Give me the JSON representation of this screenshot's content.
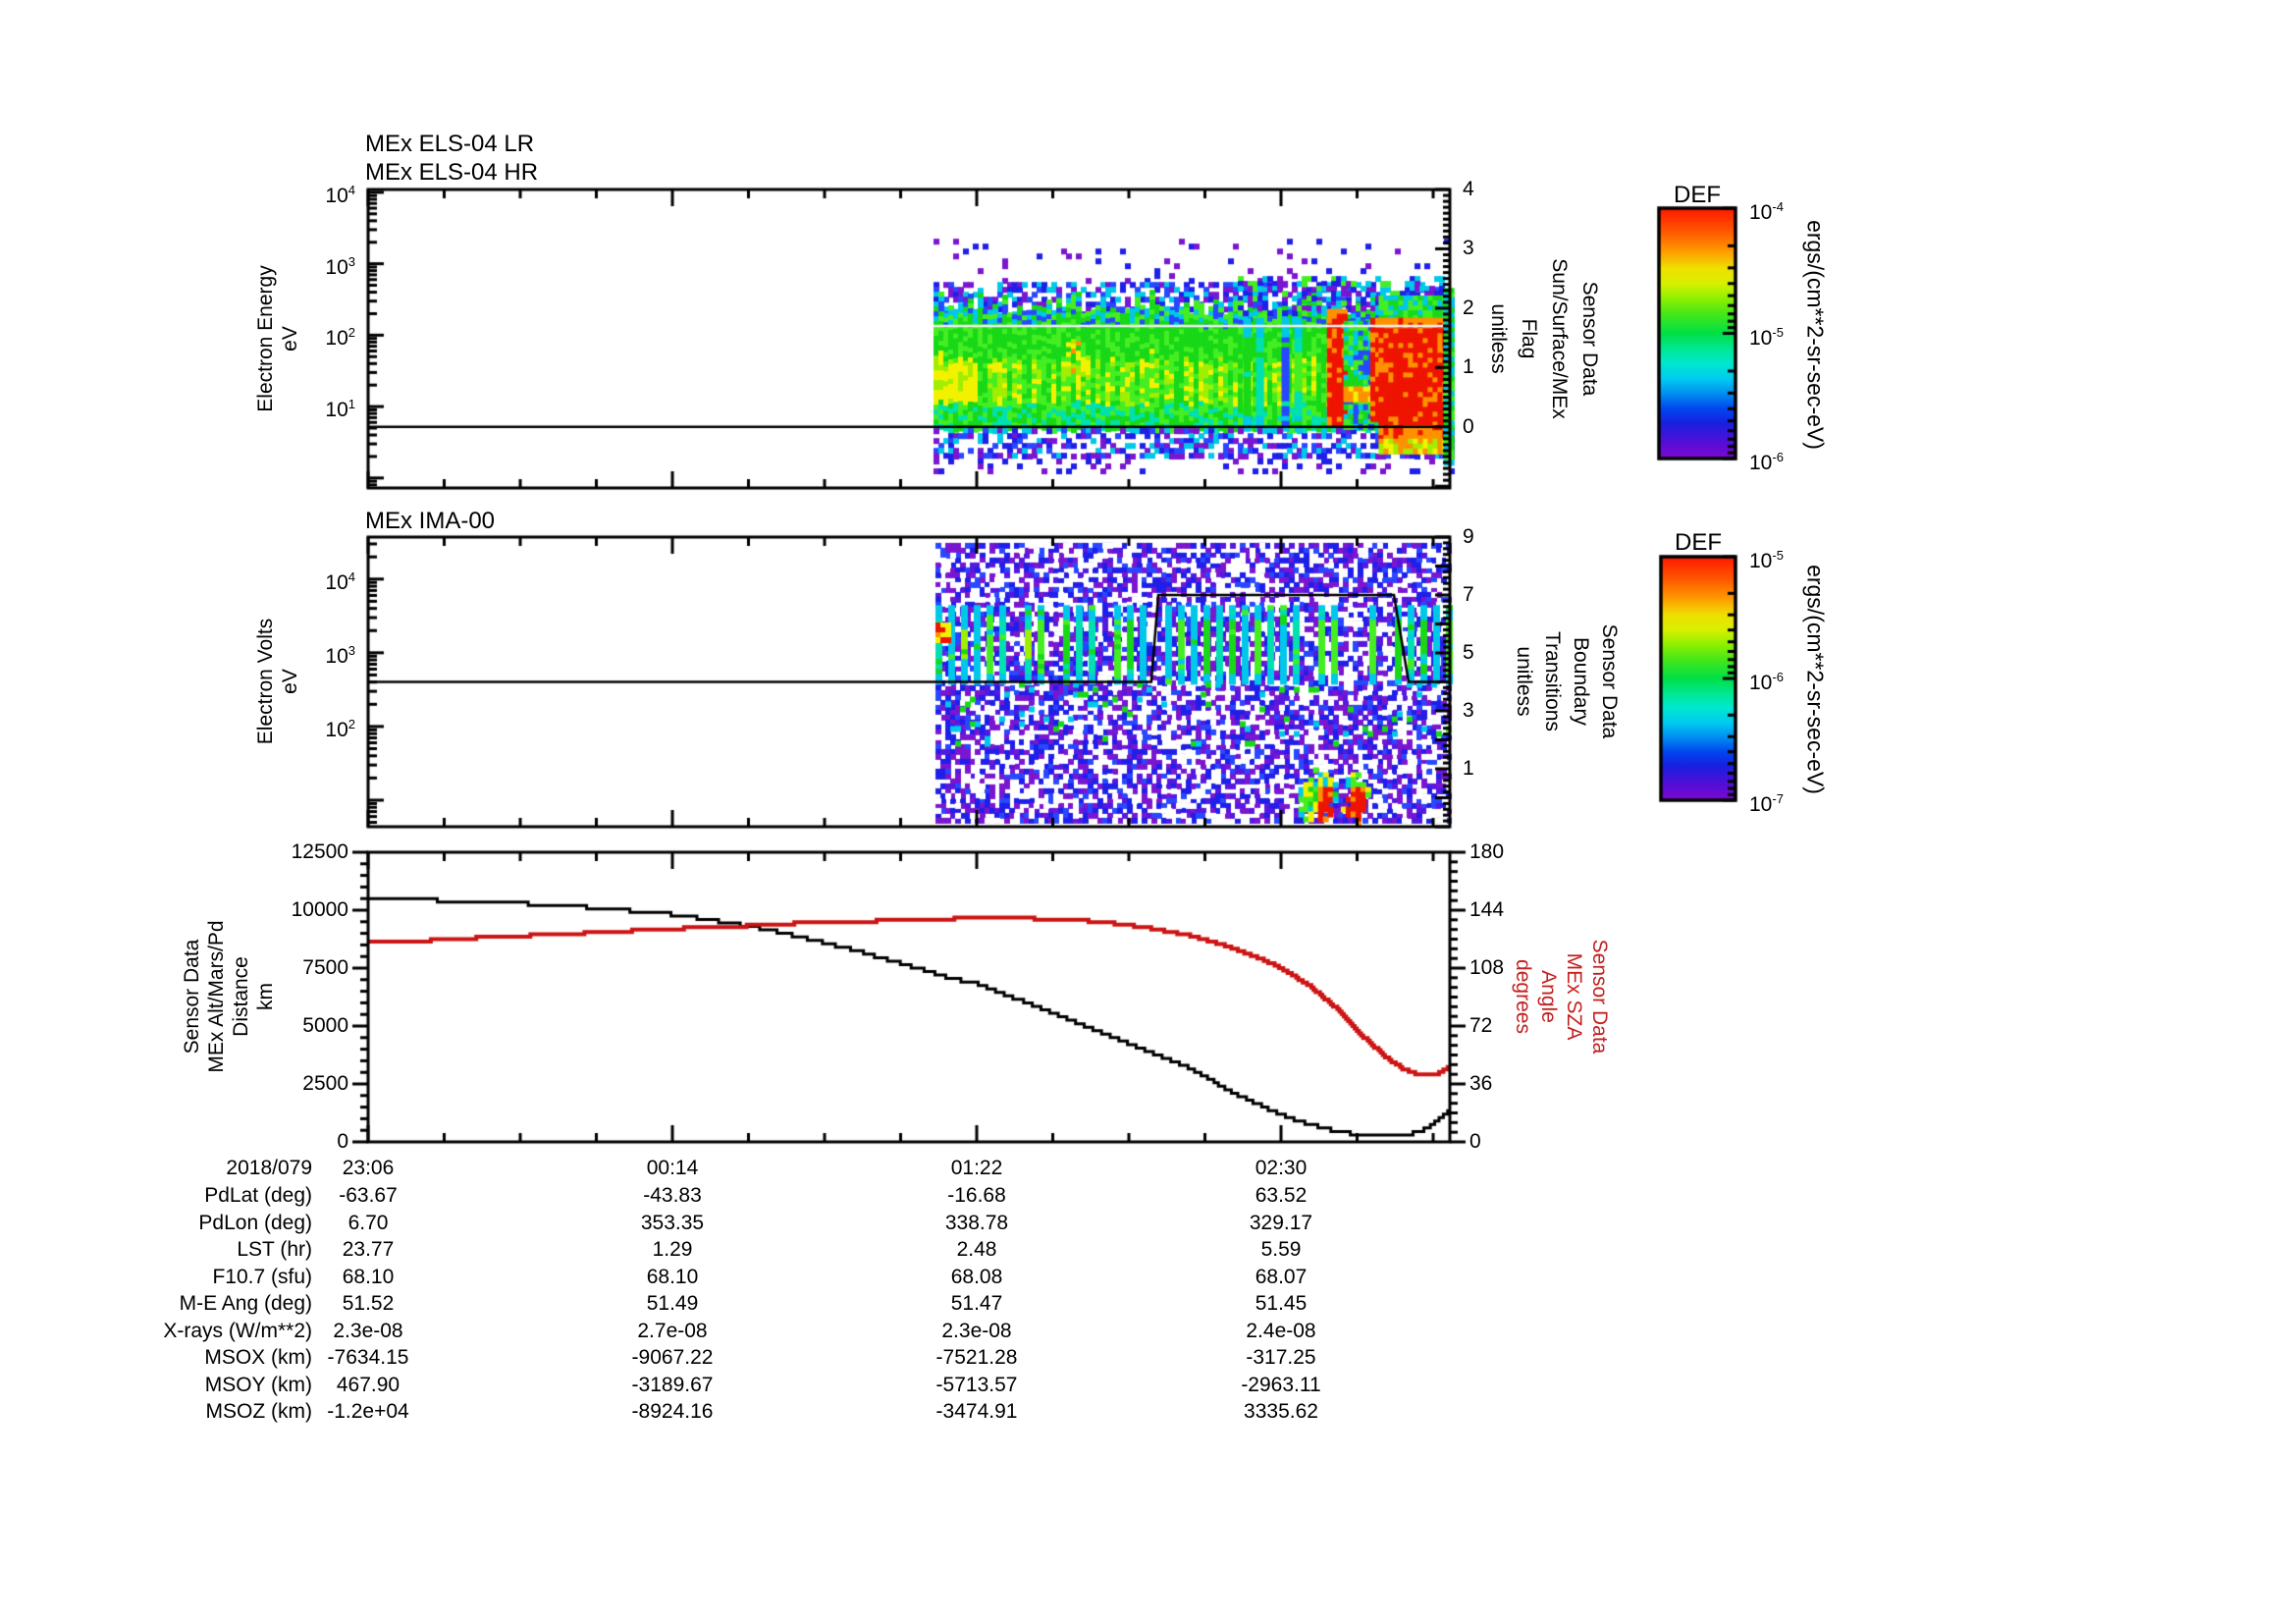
{
  "page": {
    "background": "#ffffff"
  },
  "palette": {
    "purple": "#7a16d0",
    "violet": "#5518e0",
    "blue": "#1f1fe8",
    "blue2": "#2848ff",
    "cyan": "#00c8e8",
    "teal": "#00e0b0",
    "green": "#18d818",
    "green2": "#44ee22",
    "ygreen": "#a0ee00",
    "yellow": "#f2f200",
    "orange": "#ff9100",
    "red": "#ee1400",
    "white": "#ffffff",
    "axis": "#000000",
    "red_series": "#cc1414",
    "overlay": "#f0f0f0"
  },
  "xaxis": {
    "date": "2018/079",
    "labels": [
      "23:06",
      "00:14",
      "01:22",
      "02:30"
    ],
    "major_fracs": [
      0,
      0.281308,
      0.562616,
      0.843924
    ],
    "minor_frac": 0.070327,
    "minor_count": 15
  },
  "chart_data": [
    {
      "type": "heatmap",
      "id": "els",
      "titles": [
        "MEx ELS-04 LR",
        "MEx ELS-04 HR"
      ],
      "ylabel_lines": [
        "Electron Energy",
        "eV"
      ],
      "y2label_lines": [
        "Sensor Data",
        "Sun/Surface/MEx",
        "Flag",
        "unitless"
      ],
      "yaxis": {
        "scale": "log",
        "exp_top": 4.04,
        "exp_bottom": -0.14,
        "labeled": [
          1,
          2,
          3,
          4
        ]
      },
      "y2axis": {
        "min": -1.03,
        "max": 4,
        "labels": [
          0,
          1,
          2,
          3,
          4
        ],
        "minor": 0.1
      },
      "data_start_frac": 0.5227,
      "flag_segments": [
        [
          0,
          0
        ],
        [
          1,
          0
        ]
      ],
      "overlay_line_value": 1.7,
      "colorbar": {
        "title": "DEF",
        "unit": "ergs/(cm**2-sr-sec-eV)",
        "tick_labels": [
          {
            "exp": "-4",
            "frac": 0
          },
          {
            "exp": "-5",
            "frac": 0.5
          },
          {
            "exp": "-6",
            "frac": 1
          }
        ],
        "decades": 2
      },
      "spectro": {
        "cell": 5,
        "seed": 7,
        "layers": [
          {
            "k": "speckle",
            "x": [
              0,
              1
            ],
            "y": [
              0.165,
              0.31
            ],
            "d": 0.07,
            "c": [
              "purple",
              "blue"
            ]
          },
          {
            "k": "speckle",
            "x": [
              0,
              1
            ],
            "y": [
              0.31,
              0.425
            ],
            "d": 0.5,
            "c": [
              "blue",
              "blue2",
              "purple",
              "cyan"
            ]
          },
          {
            "k": "elsband",
            "x": [
              0,
              1
            ],
            "y": [
              0.42,
              0.8
            ],
            "yellow_left": [
              0,
              0.085
            ],
            "hot_col": [
              0.255,
              0.3
            ]
          },
          {
            "k": "vstripes",
            "x": [
              0.6,
              0.765
            ],
            "y": [
              0.43,
              0.8
            ],
            "period": 13,
            "w": 8,
            "p": 0.55,
            "c": [
              "cyan",
              "blue2",
              "teal",
              "green"
            ],
            "core": "green2",
            "corep": 0.1,
            "corex": [
              0,
              1
            ]
          },
          {
            "k": "speckle",
            "x": [
              0,
              1
            ],
            "y": [
              0.8,
              0.885
            ],
            "d": 0.5,
            "c": [
              "blue",
              "cyan",
              "blue2",
              "purple"
            ]
          },
          {
            "k": "speckle",
            "x": [
              0,
              1
            ],
            "y": [
              0.885,
              0.95
            ],
            "d": 0.2,
            "c": [
              "purple",
              "blue"
            ]
          },
          {
            "k": "speckle",
            "x": [
              0.58,
              0.99
            ],
            "y": [
              0.29,
              0.42
            ],
            "d": 0.4,
            "c": [
              "blue",
              "cyan",
              "purple",
              "green2"
            ]
          },
          {
            "k": "solid",
            "x": [
              0.762,
              0.794
            ],
            "y": [
              0.4,
              0.79
            ],
            "jit": [
              "red",
              "red",
              "red",
              "orange"
            ]
          },
          {
            "k": "speckle",
            "x": [
              0.794,
              0.846
            ],
            "y": [
              0.44,
              0.79
            ],
            "d": 0.9,
            "c": [
              "cyan",
              "green",
              "blue2",
              "green2"
            ]
          },
          {
            "k": "solid",
            "x": [
              0.794,
              0.846
            ],
            "y": [
              0.66,
              0.7
            ],
            "jit": [
              "orange",
              "orange",
              "yellow"
            ]
          },
          {
            "k": "solid",
            "x": [
              0.846,
              0.862
            ],
            "y": [
              0.43,
              0.77
            ],
            "jit": [
              "red",
              "red",
              "orange"
            ]
          },
          {
            "k": "bands",
            "x": [
              0.862,
              0.988
            ],
            "bands": [
              {
                "y": [
                  0.355,
                  0.43
                ],
                "jit": [
                  "green",
                  "green2",
                  "cyan"
                ]
              },
              {
                "y": [
                  0.43,
                  0.465
                ],
                "jit": [
                  "orange",
                  "orange",
                  "red"
                ]
              },
              {
                "y": [
                  0.465,
                  0.79
                ],
                "jit": [
                  "red",
                  "red",
                  "red",
                  "red",
                  "orange"
                ]
              },
              {
                "y": [
                  0.79,
                  0.835
                ],
                "jit": [
                  "orange",
                  "red",
                  "orange"
                ]
              },
              {
                "y": [
                  0.835,
                  0.868
                ],
                "jit": [
                  "yellow",
                  "orange",
                  "ygreen"
                ]
              }
            ]
          },
          {
            "k": "solid",
            "x": [
              0.988,
              1.0
            ],
            "y": [
              0.33,
              0.915
            ],
            "jit": [
              "green",
              "green2",
              "cyan"
            ]
          }
        ]
      }
    },
    {
      "type": "heatmap",
      "id": "ima",
      "titles": [
        "MEx IMA-00"
      ],
      "ylabel_lines": [
        "Electron Volts",
        "eV"
      ],
      "y2label_lines": [
        "Sensor Data",
        "Boundary",
        "Transitions",
        "unitless"
      ],
      "yaxis": {
        "scale": "log",
        "exp_top": 4.57,
        "exp_bottom": 0.64,
        "labeled": [
          2,
          3,
          4
        ]
      },
      "y2axis": {
        "min": -1,
        "max": 9,
        "labels": [
          1,
          3,
          5,
          7,
          9
        ],
        "minor": 0.2
      },
      "data_start_frac": 0.5245,
      "flag_segments": [
        [
          0,
          4
        ],
        [
          0.724,
          4
        ],
        [
          0.7305,
          7
        ],
        [
          0.9483,
          7
        ],
        [
          0.9619,
          4
        ],
        [
          1,
          4
        ]
      ],
      "overlay_line_value": null,
      "colorbar": {
        "title": "DEF",
        "unit": "ergs/(cm**2-sr-sec-eV)",
        "tick_labels": [
          {
            "exp": "-5",
            "frac": 0
          },
          {
            "exp": "-6",
            "frac": 0.5
          },
          {
            "exp": "-7",
            "frac": 1
          }
        ],
        "decades": 2
      },
      "spectro": {
        "cell": 5,
        "seed": 11,
        "layers": [
          {
            "k": "speckle",
            "x": [
              0,
              1
            ],
            "y": [
              0.02,
              0.98
            ],
            "d": 0.58,
            "c": [
              "purple",
              "violet",
              "blue",
              "blue2",
              "purple",
              "blue"
            ]
          },
          {
            "k": "speckle",
            "x": [
              0,
              1
            ],
            "y": [
              0.02,
              0.98
            ],
            "d": 0.1,
            "c": [
              "white"
            ]
          },
          {
            "k": "vstripes",
            "x": [
              0,
              1
            ],
            "y": [
              0.235,
              0.5
            ],
            "period": 13,
            "w": 7,
            "p": 0.6,
            "c": [
              "cyan",
              "teal",
              "green",
              "green2"
            ],
            "core": "ygreen",
            "corep": 0.22,
            "corex": [
              0,
              0.42
            ]
          },
          {
            "k": "solid",
            "x": [
              0,
              0.024
            ],
            "y": [
              0.295,
              0.36
            ],
            "jit": [
              "red",
              "orange",
              "yellow",
              "red"
            ]
          },
          {
            "k": "speckle",
            "x": [
              0,
              1
            ],
            "y": [
              0.5,
              0.72
            ],
            "d": 0.05,
            "c": [
              "cyan",
              "green"
            ]
          },
          {
            "k": "blob",
            "x": [
              0.696,
              0.778
            ],
            "y": [
              0.795,
              0.985
            ],
            "c": [
              "green",
              "cyan",
              "green2",
              "yellow"
            ],
            "corex": [
              0.742,
              0.77
            ],
            "cc": [
              "red",
              "orange",
              "red"
            ]
          },
          {
            "k": "blob",
            "x": [
              0.788,
              0.838
            ],
            "y": [
              0.795,
              0.985
            ],
            "c": [
              "green",
              "green2",
              "cyan",
              "yellow"
            ],
            "corex": [
              0.797,
              0.827
            ],
            "cc": [
              "red",
              "red",
              "orange"
            ]
          }
        ]
      }
    },
    {
      "type": "line",
      "id": "ephemeris",
      "ylabel_lines": [
        "Sensor Data",
        "MEx Alt/Mars/Pd",
        "Distance",
        "km"
      ],
      "y2label_lines": [
        "Sensor Data",
        "MEx SZA",
        "Angle",
        "degrees"
      ],
      "yaxis": {
        "min": 0,
        "max": 12500,
        "major": 2500,
        "minor": 500
      },
      "y2axis": {
        "min": 0,
        "max": 180,
        "major": 36,
        "minor": 6
      },
      "series": [
        {
          "name": "distance_km",
          "axis": "y",
          "color": "#000000",
          "quant": 150,
          "width": 3,
          "points": [
            [
              0,
              10450
            ],
            [
              0.06,
              10430
            ],
            [
              0.1,
              10370
            ],
            [
              0.14,
              10290
            ],
            [
              0.18,
              10200
            ],
            [
              0.22,
              10060
            ],
            [
              0.26,
              9900
            ],
            [
              0.281,
              9820
            ],
            [
              0.31,
              9620
            ],
            [
              0.34,
              9400
            ],
            [
              0.38,
              9050
            ],
            [
              0.42,
              8620
            ],
            [
              0.46,
              8130
            ],
            [
              0.5,
              7600
            ],
            [
              0.54,
              7030
            ],
            [
              0.563,
              6820
            ],
            [
              0.6,
              6150
            ],
            [
              0.64,
              5430
            ],
            [
              0.68,
              4680
            ],
            [
              0.72,
              3920
            ],
            [
              0.76,
              3160
            ],
            [
              0.8,
              2100
            ],
            [
              0.83,
              1450
            ],
            [
              0.86,
              900
            ],
            [
              0.89,
              520
            ],
            [
              0.91,
              340
            ],
            [
              0.93,
              270
            ],
            [
              0.955,
              280
            ],
            [
              0.97,
              420
            ],
            [
              0.985,
              800
            ],
            [
              1,
              1350
            ]
          ]
        },
        {
          "name": "sza_deg",
          "axis": "y2",
          "color": "#cc1414",
          "quant": 1.5,
          "width": 4,
          "points": [
            [
              0,
              124
            ],
            [
              0.05,
              125
            ],
            [
              0.09,
              126.5
            ],
            [
              0.13,
              127.5
            ],
            [
              0.17,
              129
            ],
            [
              0.21,
              130
            ],
            [
              0.25,
              131.5
            ],
            [
              0.281,
              132.5
            ],
            [
              0.32,
              133.5
            ],
            [
              0.36,
              134.5
            ],
            [
              0.4,
              136
            ],
            [
              0.44,
              136.5
            ],
            [
              0.48,
              137.5
            ],
            [
              0.52,
              138.5
            ],
            [
              0.563,
              139
            ],
            [
              0.6,
              139
            ],
            [
              0.63,
              138.5
            ],
            [
              0.66,
              137.5
            ],
            [
              0.7,
              135
            ],
            [
              0.73,
              132
            ],
            [
              0.76,
              128
            ],
            [
              0.79,
              122.5
            ],
            [
              0.82,
              115
            ],
            [
              0.844,
              108
            ],
            [
              0.87,
              97
            ],
            [
              0.9,
              80
            ],
            [
              0.92,
              65
            ],
            [
              0.94,
              53
            ],
            [
              0.955,
              46
            ],
            [
              0.97,
              42
            ],
            [
              0.985,
              41.5
            ],
            [
              1,
              47
            ]
          ]
        }
      ]
    }
  ],
  "table": {
    "date": "2018/079",
    "times": [
      "23:06",
      "00:14",
      "01:22",
      "02:30"
    ],
    "rows": [
      {
        "label": "PdLat (deg)",
        "values": [
          "-63.67",
          "-43.83",
          "-16.68",
          "63.52"
        ]
      },
      {
        "label": "PdLon (deg)",
        "values": [
          "6.70",
          "353.35",
          "338.78",
          "329.17"
        ]
      },
      {
        "label": "LST (hr)",
        "values": [
          "23.77",
          "1.29",
          "2.48",
          "5.59"
        ]
      },
      {
        "label": "F10.7 (sfu)",
        "values": [
          "68.10",
          "68.10",
          "68.08",
          "68.07"
        ]
      },
      {
        "label": "M-E Ang (deg)",
        "values": [
          "51.52",
          "51.49",
          "51.47",
          "51.45"
        ]
      },
      {
        "label": "X-rays (W/m**2)",
        "values": [
          "2.3e-08",
          "2.7e-08",
          "2.3e-08",
          "2.4e-08"
        ]
      },
      {
        "label": "MSOX (km)",
        "values": [
          "-7634.15",
          "-9067.22",
          "-7521.28",
          "-317.25"
        ]
      },
      {
        "label": "MSOY (km)",
        "values": [
          "467.90",
          "-3189.67",
          "-5713.57",
          "-2963.11"
        ]
      },
      {
        "label": "MSOZ (km)",
        "values": [
          "-1.2e+04",
          "-8924.16",
          "-3474.91",
          "3335.62"
        ]
      }
    ]
  }
}
